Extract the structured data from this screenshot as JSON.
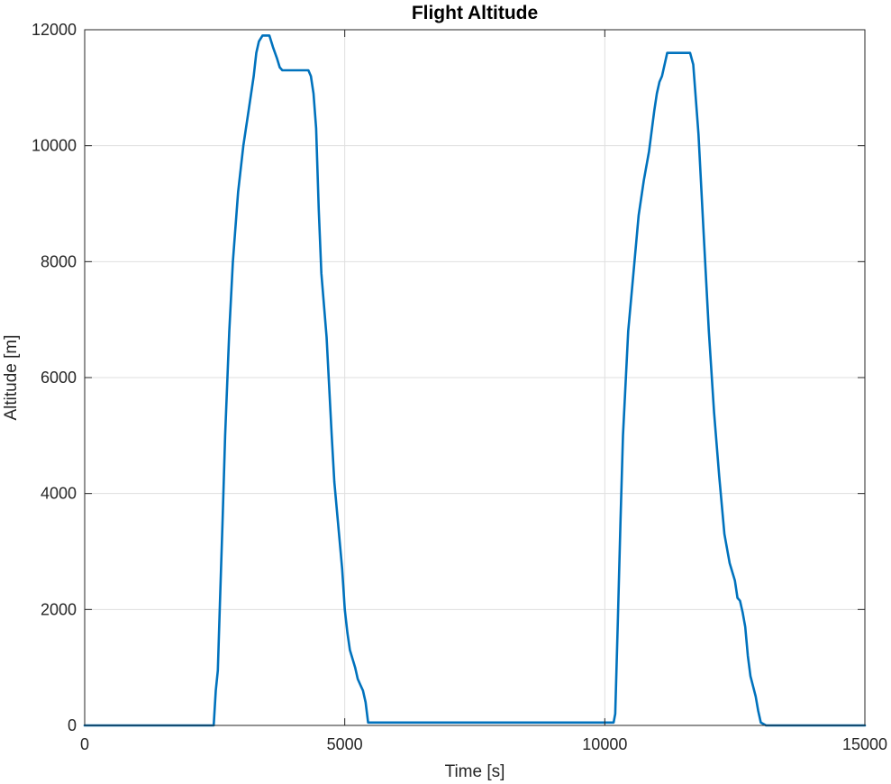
{
  "chart_data": {
    "type": "line",
    "title": "Flight Altitude",
    "xlabel": "Time [s]",
    "ylabel": "Altitude [m]",
    "xlim": [
      0,
      15000
    ],
    "ylim": [
      0,
      12000
    ],
    "x_ticks": [
      0,
      5000,
      10000,
      15000
    ],
    "y_ticks": [
      0,
      2000,
      4000,
      6000,
      8000,
      10000,
      12000
    ],
    "grid": true,
    "series": [
      {
        "color": "#0072BD",
        "x": [
          0,
          2480,
          2520,
          2560,
          2600,
          2650,
          2700,
          2780,
          2850,
          2950,
          3050,
          3150,
          3250,
          3300,
          3350,
          3420,
          3480,
          3550,
          3620,
          3700,
          3750,
          3800,
          3850,
          3900,
          4000,
          4100,
          4200,
          4300,
          4350,
          4400,
          4450,
          4500,
          4550,
          4650,
          4750,
          4800,
          4850,
          4950,
          5000,
          5050,
          5100,
          5200,
          5250,
          5300,
          5350,
          5400,
          5450,
          5480,
          5500,
          5520,
          10100,
          10170,
          10200,
          10250,
          10300,
          10350,
          10450,
          10550,
          10650,
          10750,
          10850,
          10950,
          11000,
          11050,
          11100,
          11200,
          11300,
          11400,
          11500,
          11600,
          11640,
          11700,
          11800,
          11900,
          12000,
          12100,
          12200,
          12300,
          12400,
          12500,
          12550,
          12600,
          12650,
          12700,
          12750,
          12800,
          12900,
          12950,
          13000,
          13100,
          15000
        ],
        "y": [
          0,
          0,
          600,
          950,
          2100,
          3500,
          5000,
          6800,
          8000,
          9200,
          10000,
          10600,
          11200,
          11600,
          11800,
          11900,
          11900,
          11900,
          11700,
          11500,
          11350,
          11300,
          11300,
          11300,
          11300,
          11300,
          11300,
          11300,
          11200,
          10900,
          10300,
          8900,
          7800,
          6700,
          5000,
          4200,
          3700,
          2700,
          2000,
          1600,
          1300,
          1000,
          800,
          700,
          600,
          400,
          50,
          50,
          50,
          50,
          50,
          50,
          200,
          1800,
          3500,
          5000,
          6800,
          7800,
          8800,
          9400,
          9900,
          10600,
          10900,
          11100,
          11200,
          11600,
          11600,
          11600,
          11600,
          11600,
          11600,
          11400,
          10200,
          8500,
          6800,
          5400,
          4300,
          3300,
          2800,
          2500,
          2200,
          2150,
          1950,
          1700,
          1200,
          850,
          500,
          250,
          50,
          0,
          0
        ]
      }
    ]
  }
}
